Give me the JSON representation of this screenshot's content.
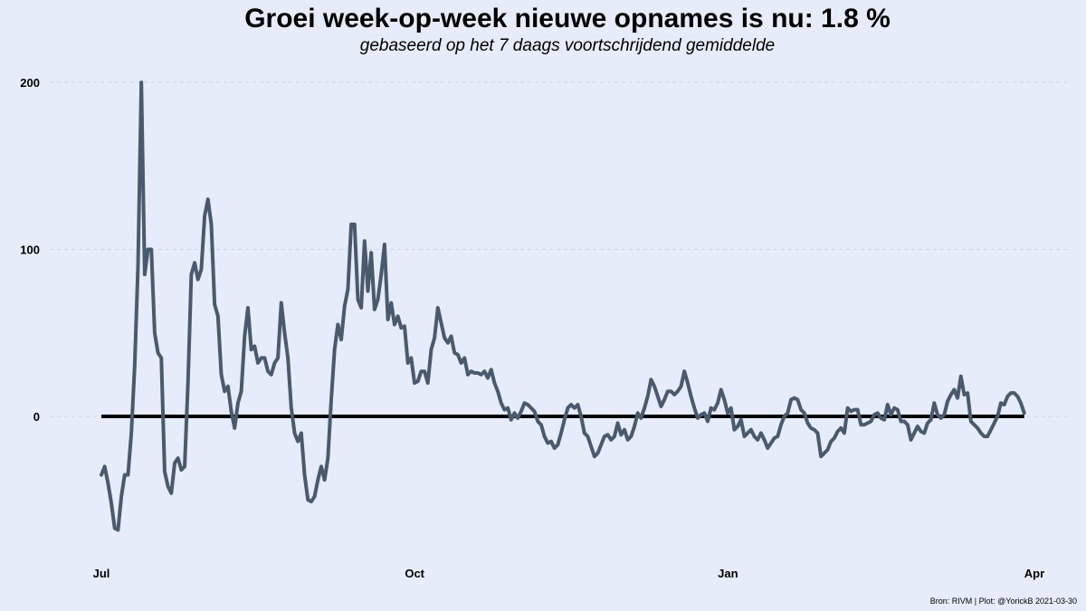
{
  "chart_data": {
    "type": "line",
    "title": "Groei week-op-week nieuwe opnames is nu:  1.8 %",
    "subtitle": "gebaseerd op het 7 daags voortschrijdend gemiddelde",
    "caption": "Bron: RIVM | Plot: @YorickB  2021-03-30",
    "xlabel": "",
    "ylabel": "",
    "x_range": [
      "2020-07-01",
      "2021-04-01"
    ],
    "ylim": [
      -85,
      205
    ],
    "grid": {
      "horizontal": true,
      "vertical": false
    },
    "x_ticks": [
      {
        "label": "Jul",
        "date": "2020-07-01"
      },
      {
        "label": "Oct",
        "date": "2020-10-01"
      },
      {
        "label": "Jan",
        "date": "2021-01-01"
      },
      {
        "label": "Apr",
        "date": "2021-04-01"
      }
    ],
    "y_ticks": [
      0,
      100,
      200
    ],
    "reference_line": {
      "y": 0,
      "color": "#000000"
    },
    "line_color": "#4a5a6e",
    "start_date": "2020-07-01",
    "values": [
      -35,
      -30,
      -40,
      -52,
      -67,
      -68,
      -48,
      -35,
      -35,
      -10,
      30,
      90,
      200,
      85,
      100,
      100,
      50,
      38,
      35,
      -33,
      -42,
      -46,
      -28,
      -25,
      -32,
      -30,
      20,
      85,
      92,
      82,
      88,
      120,
      130,
      115,
      67,
      60,
      25,
      15,
      18,
      3,
      -7,
      8,
      15,
      48,
      65,
      40,
      42,
      32,
      35,
      35,
      27,
      25,
      32,
      35,
      68,
      50,
      35,
      5,
      -10,
      -15,
      -10,
      -35,
      -50,
      -51,
      -48,
      -38,
      -30,
      -38,
      -25,
      10,
      40,
      55,
      46,
      66,
      76,
      115,
      115,
      70,
      65,
      105,
      75,
      98,
      64,
      70,
      85,
      103,
      58,
      68,
      55,
      60,
      53,
      54,
      32,
      35,
      20,
      21,
      27,
      27,
      20,
      40,
      47,
      65,
      56,
      47,
      44,
      48,
      38,
      37,
      32,
      35,
      25,
      27,
      26,
      26,
      25,
      27,
      23,
      28,
      20,
      15,
      8,
      4,
      5,
      -2,
      2,
      -1,
      3,
      8,
      7,
      5,
      3,
      -3,
      -5,
      -12,
      -16,
      -15,
      -19,
      -17,
      -10,
      -2,
      5,
      7,
      5,
      7,
      0,
      -10,
      -12,
      -18,
      -24,
      -22,
      -17,
      -12,
      -11,
      -14,
      -12,
      -4,
      -11,
      -8,
      -14,
      -12,
      -6,
      2,
      -1,
      5,
      12,
      22,
      18,
      12,
      6,
      10,
      15,
      15,
      13,
      15,
      18,
      27,
      20,
      12,
      5,
      -1,
      1,
      2,
      -3,
      5,
      4,
      8,
      16,
      10,
      2,
      5,
      -8,
      -6,
      -2,
      -12,
      -10,
      -8,
      -12,
      -14,
      -10,
      -14,
      -19,
      -16,
      -13,
      -12,
      -5,
      0,
      2,
      10,
      11,
      10,
      4,
      2,
      -4,
      -7,
      -8,
      -10,
      -24,
      -22,
      -20,
      -15,
      -13,
      -9,
      -7,
      -10,
      5,
      3,
      4,
      4,
      -5,
      -5,
      -4,
      -3,
      1,
      2,
      -1,
      -2,
      7,
      1,
      5,
      4,
      -3,
      -3,
      -5,
      -14,
      -10,
      -6,
      -9,
      -10,
      -4,
      -2,
      8,
      1,
      -1,
      1,
      9,
      13,
      16,
      11,
      24,
      13,
      14,
      -3,
      -5,
      -7,
      -10,
      -12,
      -12,
      -8,
      -4,
      0,
      8,
      7,
      12,
      14,
      14,
      12,
      8,
      2
    ]
  }
}
